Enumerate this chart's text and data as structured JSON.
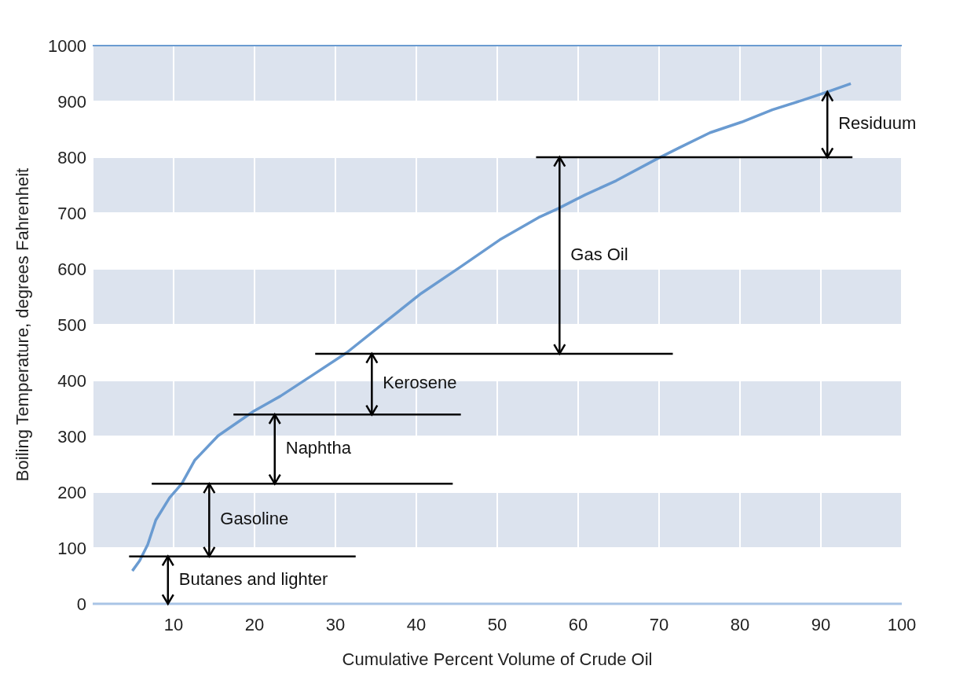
{
  "chart_data": {
    "type": "line",
    "xlabel": "Cumulative Percent Volume of Crude Oil",
    "ylabel": "Boiling Temperature, degrees Fahrenheit",
    "xlim": [
      0,
      100
    ],
    "xticks": [
      10,
      20,
      30,
      40,
      50,
      60,
      70,
      80,
      90,
      100
    ],
    "ylim": [
      0,
      1000
    ],
    "yticks": [
      0,
      100,
      200,
      300,
      400,
      500,
      600,
      700,
      800,
      900,
      1000
    ],
    "grid": true,
    "marker": "none",
    "series": [
      {
        "color": "#6a9bd1",
        "x": [
          4.9,
          5.8,
          6.8,
          7.8,
          9.5,
          11,
          12.6,
          15.5,
          19.9,
          23.2,
          27.1,
          31.4,
          35.8,
          40.6,
          45.4,
          50.3,
          55.1,
          57.5,
          60.9,
          64.7,
          69.6,
          72.5,
          76.3,
          80.2,
          84,
          87.9,
          90.8,
          93.7
        ],
        "values": [
          59,
          77,
          106,
          150,
          190,
          215,
          257,
          301,
          345,
          372,
          409,
          450,
          501,
          556,
          603,
          652,
          692,
          708,
          733,
          758,
          796,
          817,
          844,
          863,
          885,
          903,
          917,
          932
        ]
      },
      {
        "color": "#000000",
        "x": [
          4.5,
          32.5
        ],
        "values": [
          85,
          85
        ]
      },
      {
        "color": "#000000",
        "x": [
          7.3,
          44.5
        ],
        "values": [
          215,
          215
        ]
      },
      {
        "color": "#000000",
        "x": [
          17.4,
          45.5
        ],
        "values": [
          339,
          339
        ]
      },
      {
        "color": "#000000",
        "x": [
          27.5,
          71.7
        ],
        "values": [
          448,
          448
        ]
      },
      {
        "color": "#000000",
        "x": [
          54.8,
          93.9
        ],
        "values": [
          800,
          800
        ]
      }
    ],
    "annotations": [
      {
        "text": "Butanes and lighter",
        "x": 9.3,
        "y": 85
      },
      {
        "text": "Gasoline",
        "x": 14.4,
        "y": 215
      },
      {
        "text": "Naphtha",
        "x": 22.5,
        "y": 339
      },
      {
        "text": "Kerosene",
        "x": 34.5,
        "y": 448
      },
      "Gas Oil",
      {
        "text": "Residuum",
        "x": 90.8,
        "y": 917
      }
    ]
  }
}
